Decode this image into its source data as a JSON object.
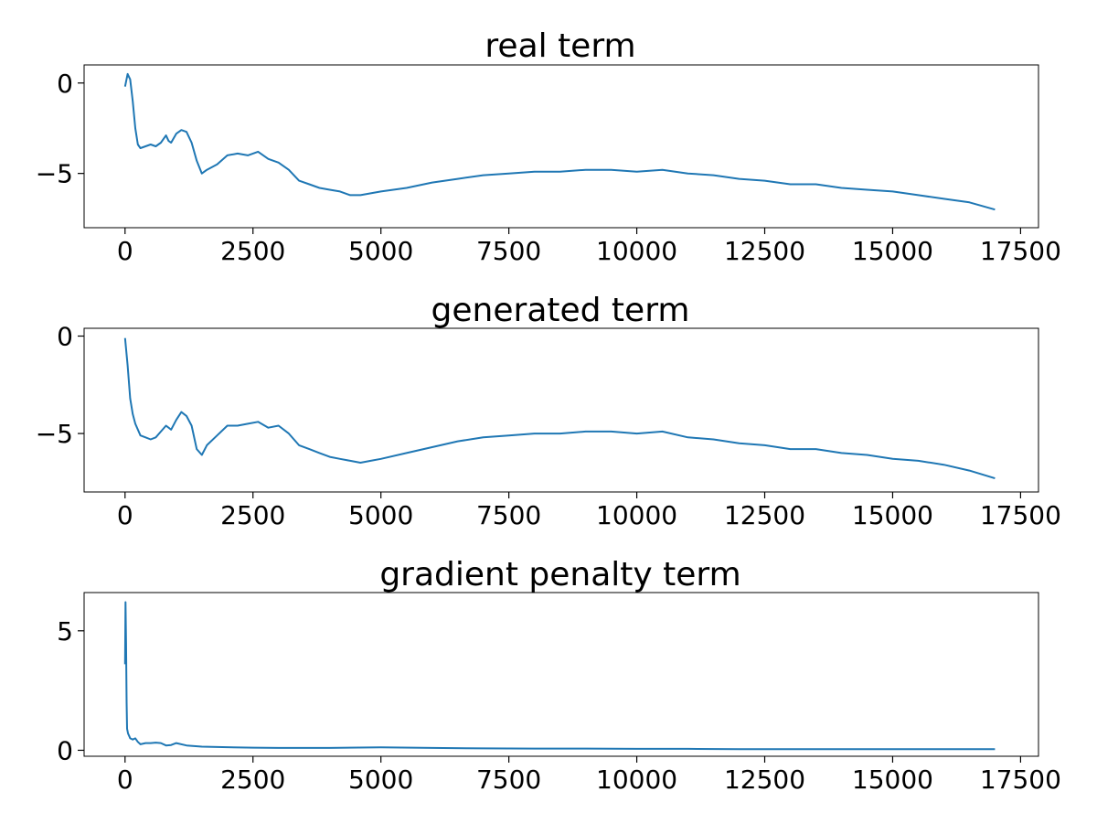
{
  "chart_data": [
    {
      "type": "line",
      "title": "real term",
      "xlabel": "",
      "ylabel": "",
      "xlim": [
        -800,
        17850
      ],
      "ylim": [
        -8.0,
        1.0
      ],
      "xticks": [
        0,
        2500,
        5000,
        7500,
        10000,
        12500,
        15000,
        17500
      ],
      "xtick_labels": [
        "0",
        "2500",
        "5000",
        "7500",
        "10000",
        "12500",
        "15000",
        "17500"
      ],
      "yticks": [
        0,
        -5
      ],
      "ytick_labels": [
        "0",
        "−5"
      ],
      "grid": false,
      "series": [
        {
          "color": "#1f77b4",
          "x": [
            0,
            50,
            100,
            150,
            200,
            250,
            300,
            400,
            500,
            600,
            700,
            800,
            850,
            900,
            1000,
            1100,
            1200,
            1300,
            1400,
            1500,
            1600,
            1800,
            2000,
            2200,
            2400,
            2600,
            2800,
            3000,
            3200,
            3400,
            3600,
            3800,
            4000,
            4200,
            4400,
            4600,
            4800,
            5000,
            5500,
            6000,
            6500,
            7000,
            7500,
            8000,
            8500,
            9000,
            9500,
            10000,
            10500,
            11000,
            11500,
            12000,
            12500,
            13000,
            13500,
            14000,
            14500,
            15000,
            15500,
            16000,
            16500,
            17000
          ],
          "y": [
            -0.2,
            0.5,
            0.2,
            -1.0,
            -2.5,
            -3.4,
            -3.6,
            -3.5,
            -3.4,
            -3.5,
            -3.3,
            -2.9,
            -3.2,
            -3.3,
            -2.8,
            -2.6,
            -2.7,
            -3.3,
            -4.3,
            -5.0,
            -4.8,
            -4.5,
            -4.0,
            -3.9,
            -4.0,
            -3.8,
            -4.2,
            -4.4,
            -4.8,
            -5.4,
            -5.6,
            -5.8,
            -5.9,
            -6.0,
            -6.2,
            -6.2,
            -6.1,
            -6.0,
            -5.8,
            -5.5,
            -5.3,
            -5.1,
            -5.0,
            -4.9,
            -4.9,
            -4.8,
            -4.8,
            -4.9,
            -4.8,
            -5.0,
            -5.1,
            -5.3,
            -5.4,
            -5.6,
            -5.6,
            -5.8,
            -5.9,
            -6.0,
            -6.2,
            -6.4,
            -6.6,
            -7.0
          ]
        }
      ]
    },
    {
      "type": "line",
      "title": "generated term",
      "xlabel": "",
      "ylabel": "",
      "xlim": [
        -800,
        17850
      ],
      "ylim": [
        -8.0,
        0.4
      ],
      "xticks": [
        0,
        2500,
        5000,
        7500,
        10000,
        12500,
        15000,
        17500
      ],
      "xtick_labels": [
        "0",
        "2500",
        "5000",
        "7500",
        "10000",
        "12500",
        "15000",
        "17500"
      ],
      "yticks": [
        0,
        -5
      ],
      "ytick_labels": [
        "0",
        "−5"
      ],
      "grid": false,
      "series": [
        {
          "color": "#1f77b4",
          "x": [
            0,
            50,
            100,
            150,
            200,
            300,
            400,
            500,
            600,
            700,
            800,
            900,
            1000,
            1100,
            1200,
            1300,
            1400,
            1500,
            1600,
            1800,
            2000,
            2200,
            2400,
            2600,
            2800,
            3000,
            3200,
            3400,
            3600,
            3800,
            4000,
            4200,
            4400,
            4600,
            4800,
            5000,
            5500,
            6000,
            6500,
            7000,
            7500,
            8000,
            8500,
            9000,
            9500,
            10000,
            10500,
            11000,
            11500,
            12000,
            12500,
            13000,
            13500,
            14000,
            14500,
            15000,
            15500,
            16000,
            16500,
            17000
          ],
          "y": [
            -0.1,
            -1.5,
            -3.2,
            -4.0,
            -4.5,
            -5.1,
            -5.2,
            -5.3,
            -5.2,
            -4.9,
            -4.6,
            -4.8,
            -4.3,
            -3.9,
            -4.1,
            -4.6,
            -5.8,
            -6.1,
            -5.6,
            -5.1,
            -4.6,
            -4.6,
            -4.5,
            -4.4,
            -4.7,
            -4.6,
            -5.0,
            -5.6,
            -5.8,
            -6.0,
            -6.2,
            -6.3,
            -6.4,
            -6.5,
            -6.4,
            -6.3,
            -6.0,
            -5.7,
            -5.4,
            -5.2,
            -5.1,
            -5.0,
            -5.0,
            -4.9,
            -4.9,
            -5.0,
            -4.9,
            -5.2,
            -5.3,
            -5.5,
            -5.6,
            -5.8,
            -5.8,
            -6.0,
            -6.1,
            -6.3,
            -6.4,
            -6.6,
            -6.9,
            -7.3
          ]
        }
      ]
    },
    {
      "type": "line",
      "title": "gradient penalty term",
      "xlabel": "",
      "ylabel": "",
      "xlim": [
        -800,
        17850
      ],
      "ylim": [
        -0.25,
        6.6
      ],
      "xticks": [
        0,
        2500,
        5000,
        7500,
        10000,
        12500,
        15000,
        17500
      ],
      "xtick_labels": [
        "0",
        "2500",
        "5000",
        "7500",
        "10000",
        "12500",
        "15000",
        "17500"
      ],
      "yticks": [
        0,
        5
      ],
      "ytick_labels": [
        "0",
        "5"
      ],
      "grid": false,
      "series": [
        {
          "color": "#1f77b4",
          "x": [
            0,
            10,
            20,
            30,
            40,
            60,
            80,
            100,
            150,
            200,
            250,
            300,
            400,
            500,
            600,
            700,
            800,
            900,
            1000,
            1200,
            1500,
            2000,
            2500,
            3000,
            4000,
            5000,
            6000,
            7000,
            8000,
            9000,
            10000,
            11000,
            12000,
            13000,
            14000,
            15000,
            16000,
            17000
          ],
          "y": [
            3.6,
            6.2,
            4.5,
            2.0,
            0.9,
            0.7,
            0.6,
            0.5,
            0.45,
            0.5,
            0.35,
            0.25,
            0.3,
            0.3,
            0.32,
            0.3,
            0.2,
            0.22,
            0.3,
            0.2,
            0.15,
            0.13,
            0.11,
            0.1,
            0.1,
            0.12,
            0.1,
            0.08,
            0.07,
            0.07,
            0.06,
            0.06,
            0.05,
            0.05,
            0.05,
            0.05,
            0.05,
            0.05
          ]
        }
      ]
    }
  ]
}
